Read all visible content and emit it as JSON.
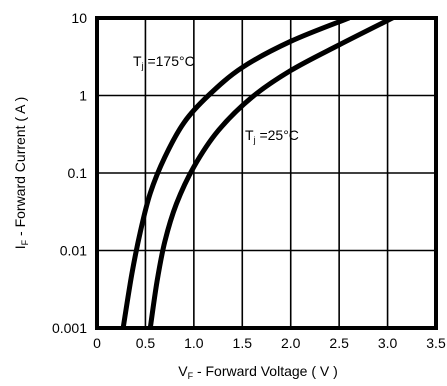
{
  "chart_data": {
    "type": "line",
    "title": "",
    "xlabel": {
      "symbol": "V",
      "subscript": "F",
      "text": " - Forward Voltage ( V )"
    },
    "ylabel": {
      "symbol": "I",
      "subscript": "F",
      "text": " - Forward Current ( A )"
    },
    "xlim": [
      0,
      3.5
    ],
    "ylim": [
      0.001,
      10
    ],
    "yscale": "log",
    "grid": true,
    "x_ticks": [
      0,
      0.5,
      1.0,
      1.5,
      2.0,
      2.5,
      3.0,
      3.5
    ],
    "x_tick_labels": [
      "0",
      "0.5",
      "1.0",
      "1.5",
      "2.0",
      "2.5",
      "3.0",
      "3.5"
    ],
    "y_ticks": [
      0.001,
      0.01,
      0.1,
      1,
      10
    ],
    "y_tick_labels": [
      "0.001",
      "0.01",
      "0.1",
      "1",
      "10"
    ],
    "series": [
      {
        "name": "Tj = 175°C",
        "label_parts": {
          "symbol": "T",
          "subscript": "j",
          "text": " =175°C"
        },
        "x": [
          0.27,
          0.36,
          0.45,
          0.55,
          0.7,
          0.9,
          1.15,
          1.5,
          2.0,
          2.6
        ],
        "y": [
          0.001,
          0.005,
          0.018,
          0.055,
          0.16,
          0.45,
          1.0,
          2.3,
          5.0,
          10
        ]
      },
      {
        "name": "Tj = 25°C",
        "label_parts": {
          "symbol": "T",
          "subscript": "j",
          "text": " =25°C"
        },
        "x": [
          0.55,
          0.62,
          0.7,
          0.82,
          1.0,
          1.25,
          1.6,
          2.0,
          2.5,
          3.05
        ],
        "y": [
          0.001,
          0.004,
          0.013,
          0.04,
          0.12,
          0.35,
          0.95,
          2.1,
          4.5,
          10
        ]
      }
    ]
  }
}
